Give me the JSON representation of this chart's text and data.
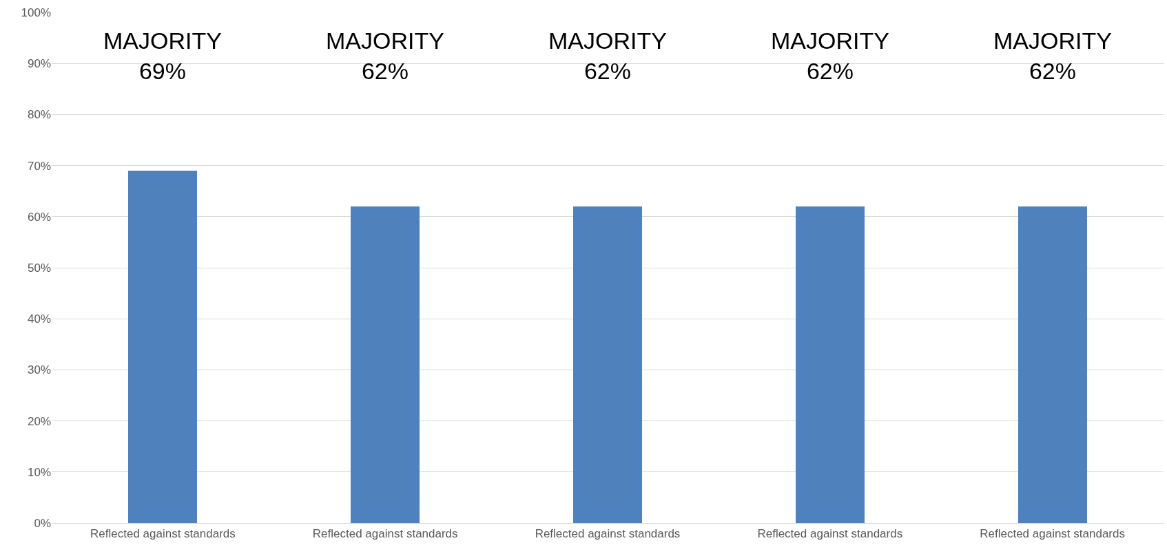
{
  "chart_data": {
    "type": "bar",
    "categories": [
      "Reflected against standards",
      "Reflected against standards",
      "Reflected against standards",
      "Reflected against standards",
      "Reflected against standards"
    ],
    "values": [
      69,
      62,
      62,
      62,
      62
    ],
    "annotations": [
      "MAJORITY\n69%",
      "MAJORITY\n62%",
      "MAJORITY\n62%",
      "MAJORITY\n62%",
      "MAJORITY\n62%"
    ],
    "color": "#4f81bd",
    "ylim": [
      0,
      100
    ],
    "yticks": [
      {
        "value": 0,
        "label": "0%"
      },
      {
        "value": 10,
        "label": "10%"
      },
      {
        "value": 20,
        "label": "20%"
      },
      {
        "value": 30,
        "label": "30%"
      },
      {
        "value": 40,
        "label": "40%"
      },
      {
        "value": 50,
        "label": "50%"
      },
      {
        "value": 60,
        "label": "60%"
      },
      {
        "value": 70,
        "label": "70%"
      },
      {
        "value": 80,
        "label": "80%"
      },
      {
        "value": 90,
        "label": "90%"
      },
      {
        "value": 100,
        "label": "100%"
      }
    ],
    "grid": "y"
  }
}
